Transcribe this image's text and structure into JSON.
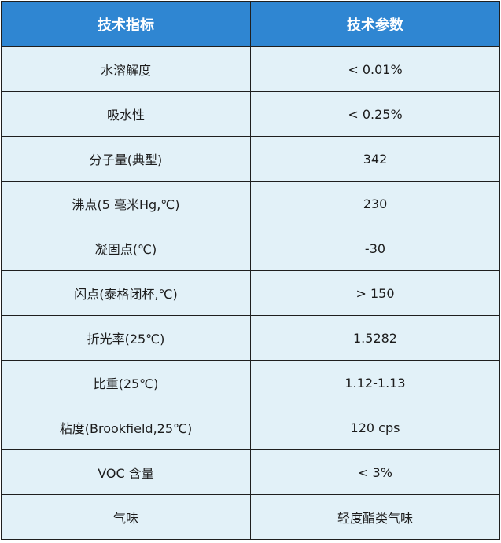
{
  "table": {
    "headers": [
      "技术指标",
      "技术参数"
    ],
    "rows": [
      [
        "水溶解度",
        "< 0.01%"
      ],
      [
        "吸水性",
        "< 0.25%"
      ],
      [
        "分子量(典型)",
        "342"
      ],
      [
        "沸点(5 毫米Hg,℃)",
        "230"
      ],
      [
        "凝固点(℃)",
        "-30"
      ],
      [
        "闪点(泰格闭杯,℃)",
        "> 150"
      ],
      [
        "折光率(25℃)",
        "1.5282"
      ],
      [
        "比重(25℃)",
        "1.12-1.13"
      ],
      [
        "粘度(Brookfield,25℃)",
        "120 cps"
      ],
      [
        "VOC 含量",
        "< 3%"
      ],
      [
        "气味",
        "轻度酯类气味"
      ]
    ]
  },
  "colors": {
    "header_background": "#2f86d2",
    "header_text": "#ffffff",
    "row_background": "#e2f1f8",
    "border": "#1f1f1f"
  }
}
